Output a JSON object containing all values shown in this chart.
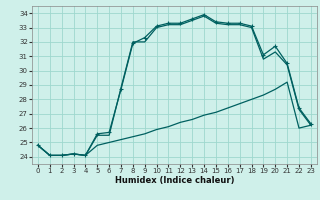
{
  "title": "",
  "xlabel": "Humidex (Indice chaleur)",
  "bg_color": "#cff0ea",
  "grid_color": "#9ed8ce",
  "line_color": "#006060",
  "xlim": [
    -0.5,
    23.5
  ],
  "ylim": [
    23.5,
    34.5
  ],
  "yticks": [
    24,
    25,
    26,
    27,
    28,
    29,
    30,
    31,
    32,
    33,
    34
  ],
  "xticks": [
    0,
    1,
    2,
    3,
    4,
    5,
    6,
    7,
    8,
    9,
    10,
    11,
    12,
    13,
    14,
    15,
    16,
    17,
    18,
    19,
    20,
    21,
    22,
    23
  ],
  "series1_x": [
    0,
    1,
    2,
    3,
    4,
    5,
    6,
    7,
    8,
    9,
    10,
    11,
    12,
    13,
    14,
    15,
    16,
    17,
    18,
    19,
    20,
    21,
    22,
    23
  ],
  "series1_y": [
    24.8,
    24.1,
    24.1,
    24.2,
    24.1,
    25.6,
    25.7,
    28.7,
    31.9,
    32.3,
    33.1,
    33.3,
    33.3,
    33.6,
    33.9,
    33.4,
    33.3,
    33.3,
    33.1,
    31.1,
    31.7,
    30.5,
    27.4,
    26.3
  ],
  "series2_x": [
    0,
    1,
    2,
    3,
    4,
    5,
    6,
    7,
    8,
    9,
    10,
    11,
    12,
    13,
    14,
    15,
    16,
    17,
    18,
    19,
    20,
    21,
    22,
    23
  ],
  "series2_y": [
    24.8,
    24.1,
    24.1,
    24.2,
    24.1,
    25.5,
    25.5,
    28.8,
    32.0,
    32.0,
    33.0,
    33.2,
    33.2,
    33.5,
    33.8,
    33.3,
    33.2,
    33.2,
    33.0,
    30.8,
    31.3,
    30.4,
    27.3,
    26.2
  ],
  "series3_x": [
    0,
    1,
    2,
    3,
    4,
    5,
    6,
    7,
    8,
    9,
    10,
    11,
    12,
    13,
    14,
    15,
    16,
    17,
    18,
    19,
    20,
    21,
    22,
    23
  ],
  "series3_y": [
    24.8,
    24.1,
    24.1,
    24.2,
    24.1,
    24.8,
    25.0,
    25.2,
    25.4,
    25.6,
    25.9,
    26.1,
    26.4,
    26.6,
    26.9,
    27.1,
    27.4,
    27.7,
    28.0,
    28.3,
    28.7,
    29.2,
    26.0,
    26.2
  ]
}
